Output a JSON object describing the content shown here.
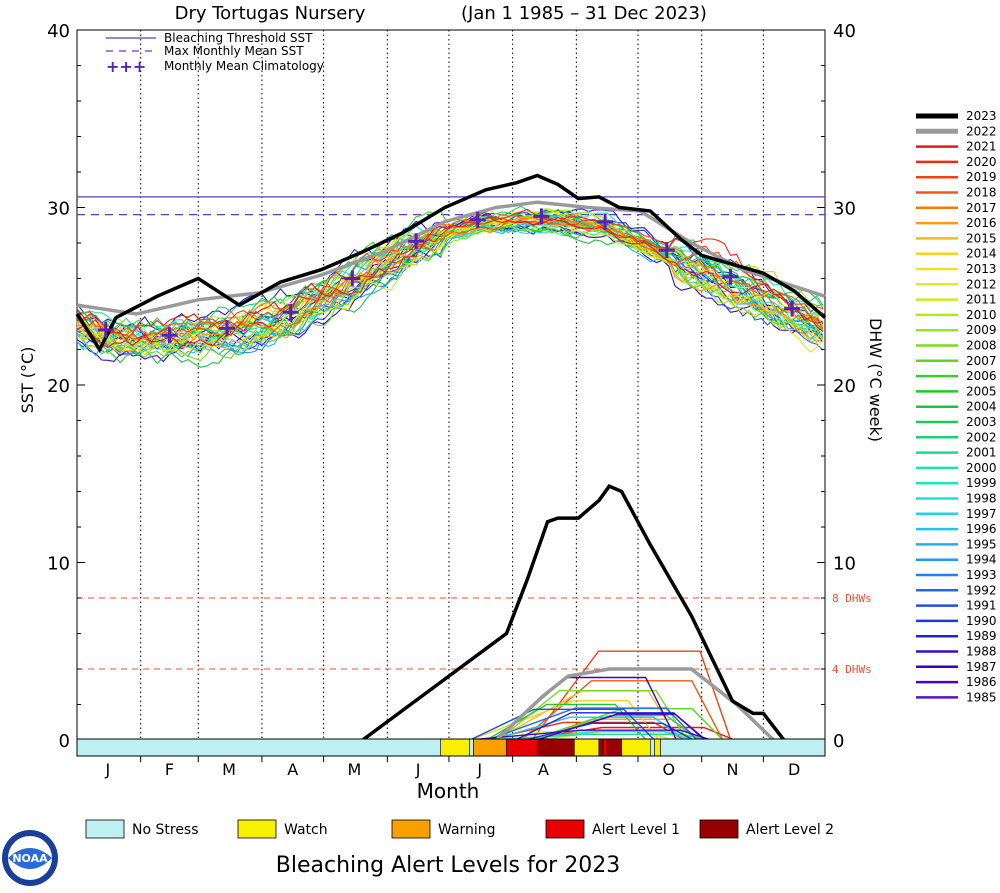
{
  "chart_data": {
    "type": "line",
    "title_site": "Dry Tortugas Nursery",
    "title_range": "(Jan 1 1985 – 31 Dec 2023)",
    "xlabel": "Month",
    "ylabel_left": "SST (°C)",
    "ylabel_right": "DHW (°C week)",
    "ylim": [
      0,
      40
    ],
    "yticks": [
      "0",
      "10",
      "20",
      "30",
      "40"
    ],
    "months": [
      "J",
      "F",
      "M",
      "A",
      "M",
      "J",
      "J",
      "A",
      "S",
      "O",
      "N",
      "D"
    ],
    "grid": "vertical-dotted",
    "legend_top": {
      "placement": "top-left",
      "items": [
        {
          "label": "Bleaching Threshold SST",
          "style": "solid",
          "value": 30.6
        },
        {
          "label": "Max Monthly Mean SST",
          "style": "dashed",
          "value": 29.6
        },
        {
          "label": "Monthly Mean Climatology",
          "style": "plus"
        }
      ]
    },
    "dhw_refs": [
      {
        "label": "8 DHWs",
        "value": 8
      },
      {
        "label": "4 DHWs",
        "value": 4
      }
    ],
    "climatology": {
      "day": [
        15,
        46,
        74,
        105,
        135,
        166,
        196,
        227,
        258,
        288,
        319,
        349
      ],
      "sst": [
        23.1,
        22.8,
        23.2,
        24.1,
        26.0,
        28.1,
        29.3,
        29.5,
        29.2,
        27.6,
        26.1,
        24.3
      ]
    },
    "sst_2023": [
      [
        1,
        24.0
      ],
      [
        12,
        22.0
      ],
      [
        20,
        23.8
      ],
      [
        40,
        25.0
      ],
      [
        60,
        26.0
      ],
      [
        80,
        24.5
      ],
      [
        100,
        25.8
      ],
      [
        120,
        26.5
      ],
      [
        140,
        27.5
      ],
      [
        160,
        28.6
      ],
      [
        180,
        30.0
      ],
      [
        200,
        31.0
      ],
      [
        215,
        31.4
      ],
      [
        225,
        31.8
      ],
      [
        235,
        31.3
      ],
      [
        245,
        30.5
      ],
      [
        255,
        30.6
      ],
      [
        265,
        30.0
      ],
      [
        280,
        29.8
      ],
      [
        295,
        28.2
      ],
      [
        305,
        27.3
      ],
      [
        320,
        26.8
      ],
      [
        335,
        26.3
      ],
      [
        350,
        25.3
      ],
      [
        365,
        23.8
      ]
    ],
    "sst_2022": [
      [
        1,
        24.5
      ],
      [
        30,
        24.0
      ],
      [
        60,
        24.8
      ],
      [
        90,
        25.2
      ],
      [
        120,
        26.2
      ],
      [
        150,
        27.5
      ],
      [
        180,
        29.2
      ],
      [
        205,
        30.0
      ],
      [
        225,
        30.3
      ],
      [
        250,
        30.0
      ],
      [
        275,
        29.8
      ],
      [
        300,
        28.0
      ],
      [
        325,
        26.5
      ],
      [
        365,
        25.0
      ]
    ],
    "dhw_2023": [
      [
        140,
        0
      ],
      [
        210,
        6
      ],
      [
        220,
        9
      ],
      [
        230,
        12.3
      ],
      [
        235,
        12.5
      ],
      [
        245,
        12.5
      ],
      [
        255,
        13.5
      ],
      [
        260,
        14.3
      ],
      [
        266,
        14.0
      ],
      [
        280,
        11
      ],
      [
        300,
        7
      ],
      [
        320,
        2.2
      ],
      [
        330,
        1.5
      ],
      [
        335,
        1.5
      ],
      [
        345,
        0
      ]
    ],
    "dhw_2022": [
      [
        205,
        0
      ],
      [
        228,
        2.5
      ],
      [
        240,
        3.6
      ],
      [
        260,
        4.0
      ],
      [
        300,
        4.0
      ],
      [
        322,
        2.0
      ],
      [
        340,
        0
      ]
    ],
    "legend_years": [
      "2023",
      "2022",
      "2021",
      "2020",
      "2019",
      "2018",
      "2017",
      "2016",
      "2015",
      "2014",
      "2013",
      "2012",
      "2011",
      "2010",
      "2009",
      "2008",
      "2007",
      "2006",
      "2005",
      "2004",
      "2003",
      "2002",
      "2001",
      "2000",
      "1999",
      "1998",
      "1997",
      "1996",
      "1995",
      "1994",
      "1993",
      "1992",
      "1991",
      "1990",
      "1989",
      "1988",
      "1987",
      "1986",
      "1985"
    ],
    "year_colors": [
      "#000000",
      "#9a9a9a",
      "#e81818",
      "#ec2a10",
      "#ee4410",
      "#f05a10",
      "#f47a10",
      "#f89a18",
      "#f8b820",
      "#f8d020",
      "#f0e020",
      "#e0ec20",
      "#c8ee20",
      "#b0ea20",
      "#98e420",
      "#78dc20",
      "#58d820",
      "#38d028",
      "#20c830",
      "#20c040",
      "#20c858",
      "#20d070",
      "#20d890",
      "#20e0aa",
      "#20e4c0",
      "#20e0d0",
      "#20d4e0",
      "#20c4ec",
      "#20b0f0",
      "#209cf0",
      "#2080f0",
      "#2068e8",
      "#2050e0",
      "#2038d8",
      "#2020d0",
      "#3010c8",
      "#3a00c0",
      "#4800c0",
      "#5a10c8"
    ],
    "alert_strip": {
      "title": "Bleaching Alert Levels for 2023",
      "segments": [
        {
          "level": "No Stress",
          "from": 1,
          "to": 178
        },
        {
          "level": "Watch",
          "from": 178,
          "to": 192
        },
        {
          "level": "No Stress",
          "from": 192,
          "to": 194
        },
        {
          "level": "Warning",
          "from": 194,
          "to": 210
        },
        {
          "level": "Alert Level 1",
          "from": 210,
          "to": 225
        },
        {
          "level": "Alert Level 2",
          "from": 225,
          "to": 243
        },
        {
          "level": "Watch",
          "from": 243,
          "to": 255
        },
        {
          "level": "Alert Level 2",
          "from": 255,
          "to": 257
        },
        {
          "level": "Alert Level 1",
          "from": 257,
          "to": 259
        },
        {
          "level": "Alert Level 2",
          "from": 259,
          "to": 266
        },
        {
          "level": "Watch",
          "from": 266,
          "to": 280
        },
        {
          "level": "No Stress",
          "from": 280,
          "to": 282
        },
        {
          "level": "Watch",
          "from": 282,
          "to": 285
        },
        {
          "level": "No Stress",
          "from": 285,
          "to": 365
        }
      ]
    },
    "alert_legend": [
      {
        "label": "No Stress",
        "color": "#bef0f0"
      },
      {
        "label": "Watch",
        "color": "#f8f000"
      },
      {
        "label": "Warning",
        "color": "#f8a000"
      },
      {
        "label": "Alert Level 1",
        "color": "#e80000"
      },
      {
        "label": "Alert Level 2",
        "color": "#960000"
      }
    ],
    "colors": {
      "threshold": "#5a3ac8",
      "climatology": "#5a20b8",
      "dhw_ref": "#f05030"
    }
  },
  "logo_text": "NOAA"
}
